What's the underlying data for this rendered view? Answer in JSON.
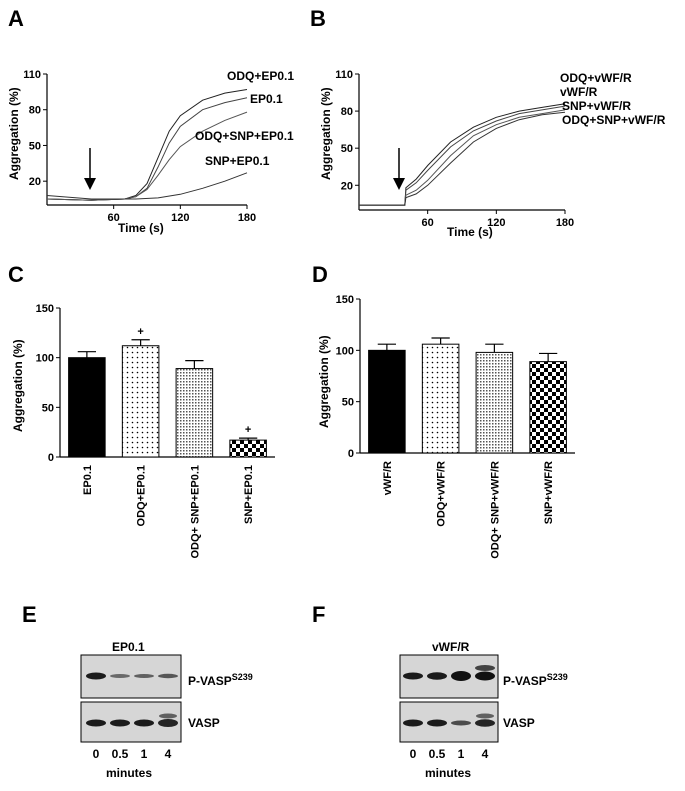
{
  "panels": {
    "A": {
      "label": "A",
      "ylabel": "Aggregation (%)",
      "xlabel": "Time (s)",
      "yticks": [
        "110",
        "80",
        "50",
        "20"
      ],
      "xticks": [
        "60",
        "120",
        "180"
      ],
      "legend": [
        "ODQ+EP0.1",
        "EP0.1",
        "ODQ+SNP+EP0.1",
        "SNP+EP0.1"
      ]
    },
    "B": {
      "label": "B",
      "ylabel": "Aggregation (%)",
      "xlabel": "Time (s)",
      "yticks": [
        "110",
        "80",
        "50",
        "20"
      ],
      "xticks": [
        "60",
        "120",
        "180"
      ],
      "legend": [
        "ODQ+vWF/R",
        "vWF/R",
        "SNP+vWF/R",
        "ODQ+SNP+vWF/R"
      ]
    },
    "C": {
      "label": "C",
      "ylabel": "Aggregation (%)",
      "yticks": [
        "150",
        "100",
        "50",
        "0"
      ],
      "sig": "+"
    },
    "D": {
      "label": "D",
      "ylabel": "Aggregation (%)",
      "yticks": [
        "150",
        "100",
        "50",
        "0"
      ]
    },
    "E": {
      "label": "E",
      "title": "EP0.1",
      "band1": "P-VASP",
      "band1_sup": "S239",
      "band2": "VASP",
      "lanes": [
        "0",
        "0.5",
        "1",
        "4"
      ],
      "xlabel": "minutes"
    },
    "F": {
      "label": "F",
      "title": "vWF/R",
      "band1": "P-VASP",
      "band1_sup": "S239",
      "band2": "VASP",
      "lanes": [
        "0",
        "0.5",
        "1",
        "4"
      ],
      "xlabel": "minutes"
    }
  },
  "chart_data": [
    {
      "panel": "A",
      "type": "line",
      "xlabel": "Time (s)",
      "ylabel": "Aggregation (%)",
      "xlim": [
        0,
        180
      ],
      "ylim": [
        0,
        110
      ],
      "series": [
        {
          "name": "ODQ+EP0.1",
          "x": [
            0,
            40,
            70,
            80,
            90,
            100,
            110,
            120,
            140,
            160,
            180
          ],
          "y": [
            5,
            4,
            5,
            8,
            18,
            40,
            62,
            75,
            88,
            94,
            97
          ]
        },
        {
          "name": "EP0.1",
          "x": [
            0,
            40,
            70,
            80,
            90,
            100,
            110,
            120,
            140,
            160,
            180
          ],
          "y": [
            5,
            4,
            5,
            7,
            14,
            32,
            52,
            66,
            80,
            86,
            90
          ]
        },
        {
          "name": "ODQ+SNP+EP0.1",
          "x": [
            0,
            40,
            70,
            80,
            90,
            100,
            110,
            120,
            140,
            160,
            180
          ],
          "y": [
            5,
            4,
            5,
            7,
            13,
            25,
            38,
            49,
            62,
            71,
            78
          ]
        },
        {
          "name": "SNP+EP0.1",
          "x": [
            0,
            40,
            80,
            100,
            120,
            140,
            160,
            180
          ],
          "y": [
            8,
            5,
            5,
            6,
            9,
            14,
            20,
            27
          ]
        }
      ]
    },
    {
      "panel": "B",
      "type": "line",
      "xlabel": "Time (s)",
      "ylabel": "Aggregation (%)",
      "xlim": [
        0,
        180
      ],
      "ylim": [
        0,
        110
      ],
      "series": [
        {
          "name": "ODQ+vWF/R",
          "x": [
            0,
            40,
            41,
            50,
            60,
            80,
            100,
            120,
            140,
            160,
            180
          ],
          "y": [
            4,
            4,
            18,
            25,
            36,
            55,
            67,
            75,
            80,
            83,
            86
          ]
        },
        {
          "name": "vWF/R",
          "x": [
            0,
            40,
            41,
            50,
            60,
            80,
            100,
            120,
            140,
            160,
            180
          ],
          "y": [
            4,
            4,
            16,
            22,
            32,
            51,
            64,
            72,
            78,
            81,
            84
          ]
        },
        {
          "name": "SNP+vWF/R",
          "x": [
            0,
            40,
            41,
            50,
            60,
            80,
            100,
            120,
            140,
            160,
            180
          ],
          "y": [
            4,
            4,
            12,
            16,
            24,
            44,
            60,
            69,
            75,
            78,
            81
          ]
        },
        {
          "name": "ODQ+SNP+vWF/R",
          "x": [
            0,
            40,
            41,
            50,
            60,
            80,
            100,
            120,
            140,
            160,
            180
          ],
          "y": [
            4,
            4,
            10,
            13,
            20,
            38,
            55,
            66,
            73,
            77,
            79
          ]
        }
      ]
    },
    {
      "panel": "C",
      "type": "bar",
      "ylabel": "Aggregation (%)",
      "ylim": [
        0,
        150
      ],
      "categories": [
        "EP0.1",
        "ODQ+EP0.1",
        "ODQ+ SNP+EP0.1",
        "SNP+EP0.1"
      ],
      "values": [
        100,
        112,
        89,
        17
      ],
      "errors": [
        6,
        6,
        8,
        2
      ],
      "significant": [
        false,
        true,
        false,
        true
      ]
    },
    {
      "panel": "D",
      "type": "bar",
      "ylabel": "Aggregation (%)",
      "ylim": [
        0,
        150
      ],
      "categories": [
        "vWF/R",
        "ODQ+vWF/R",
        "ODQ+ SNP+vWF/R",
        "SNP+vWF/R"
      ],
      "values": [
        100,
        106,
        98,
        89
      ],
      "errors": [
        6,
        6,
        8,
        8
      ]
    }
  ]
}
